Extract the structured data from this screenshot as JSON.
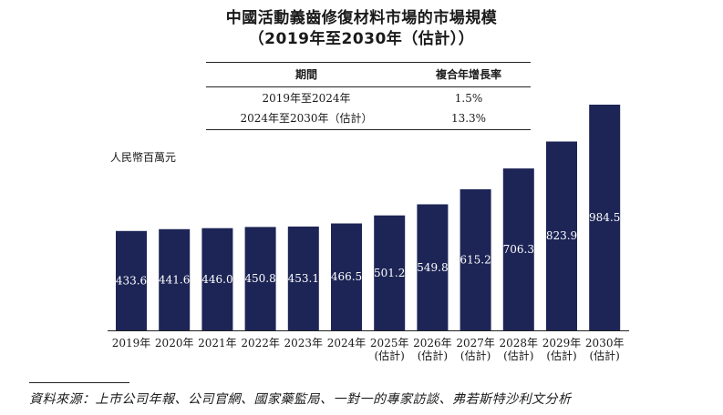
{
  "chart_data": {
    "type": "bar",
    "title": "中國活動義齒修復材料市場的市場規模",
    "subtitle": "（2019年至2030年（估計））",
    "ylabel": "人民幣百萬元",
    "xlabel": "",
    "categories": [
      [
        "2019年"
      ],
      [
        "2020年"
      ],
      [
        "2021年"
      ],
      [
        "2022年"
      ],
      [
        "2023年"
      ],
      [
        "2024年"
      ],
      [
        "2025年",
        "(估計)"
      ],
      [
        "2026年",
        "(估計)"
      ],
      [
        "2027年",
        "(估計)"
      ],
      [
        "2028年",
        "(估計)"
      ],
      [
        "2029年",
        "(估計)"
      ],
      [
        "2030年",
        "(估計)"
      ]
    ],
    "values": [
      433.6,
      441.6,
      446.0,
      450.8,
      453.1,
      466.5,
      501.2,
      549.8,
      615.2,
      706.3,
      823.9,
      984.5
    ],
    "value_labels": [
      "433.6",
      "441.6",
      "446.0",
      "450.8",
      "453.1",
      "466.5",
      "501.2",
      "549.8",
      "615.2",
      "706.3",
      "823.9",
      "984.5"
    ],
    "ylim": [
      0,
      984.5
    ],
    "grid": false,
    "bar_color": "#1d2556",
    "label_color": "#ffffff"
  },
  "cagr_table": {
    "headers": [
      "期間",
      "複合年增長率"
    ],
    "rows": [
      [
        "2019年至2024年",
        "1.5%"
      ],
      [
        "2024年至2030年（估計）",
        "13.3%"
      ]
    ]
  },
  "source": "資料來源：上市公司年報、公司官網、國家藥監局、一對一的專家訪談、弗若斯特沙利文分析"
}
